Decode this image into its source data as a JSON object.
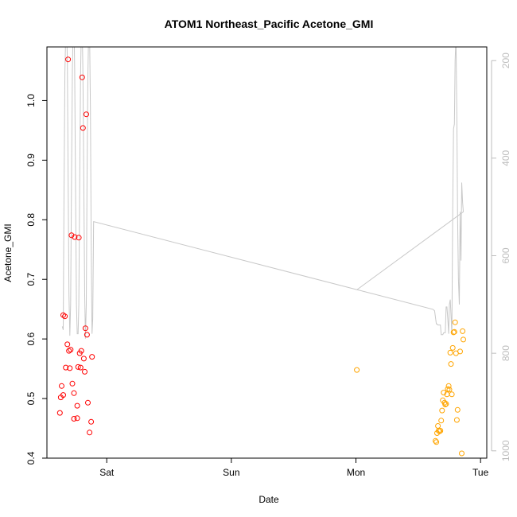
{
  "chart_data": {
    "type": "scatter",
    "title": "ATOM1 Northeast_Pacific Acetone_GMI",
    "xlabel": "Date",
    "ylabel": "Acetone_GMI",
    "xlim": [
      -0.48,
      3.05
    ],
    "ylim": [
      0.4,
      1.09
    ],
    "x_ticks": [
      {
        "value": 0,
        "label": "Sat"
      },
      {
        "value": 1,
        "label": "Sun"
      },
      {
        "value": 2,
        "label": "Mon"
      },
      {
        "value": 3,
        "label": "Tue"
      }
    ],
    "y_ticks": [
      0.4,
      0.5,
      0.6,
      0.7,
      0.8,
      0.9,
      1.0
    ],
    "y2_ticks": [
      200,
      400,
      600,
      800,
      1000
    ],
    "y2_range_reversed": [
      172,
      1015
    ],
    "grid": false,
    "series": [
      {
        "color": "#ff0000",
        "points": [
          {
            "x": -0.376,
            "y": 0.476
          },
          {
            "x": -0.369,
            "y": 0.502
          },
          {
            "x": -0.362,
            "y": 0.521
          },
          {
            "x": -0.349,
            "y": 0.506
          },
          {
            "x": -0.349,
            "y": 0.64
          },
          {
            "x": -0.336,
            "y": 0.638
          },
          {
            "x": -0.329,
            "y": 0.552
          },
          {
            "x": -0.316,
            "y": 0.591
          },
          {
            "x": -0.31,
            "y": 1.069
          },
          {
            "x": -0.303,
            "y": 0.58
          },
          {
            "x": -0.296,
            "y": 0.551
          },
          {
            "x": -0.29,
            "y": 0.582
          },
          {
            "x": -0.283,
            "y": 0.774
          },
          {
            "x": -0.276,
            "y": 0.525
          },
          {
            "x": -0.263,
            "y": 0.466
          },
          {
            "x": -0.263,
            "y": 0.509
          },
          {
            "x": -0.257,
            "y": 0.771
          },
          {
            "x": -0.237,
            "y": 0.467
          },
          {
            "x": -0.237,
            "y": 0.488
          },
          {
            "x": -0.23,
            "y": 0.553
          },
          {
            "x": -0.224,
            "y": 0.77
          },
          {
            "x": -0.217,
            "y": 0.576
          },
          {
            "x": -0.21,
            "y": 0.552
          },
          {
            "x": -0.204,
            "y": 0.58
          },
          {
            "x": -0.197,
            "y": 1.039
          },
          {
            "x": -0.191,
            "y": 0.954
          },
          {
            "x": -0.184,
            "y": 0.567
          },
          {
            "x": -0.177,
            "y": 0.545
          },
          {
            "x": -0.171,
            "y": 0.618
          },
          {
            "x": -0.164,
            "y": 0.977
          },
          {
            "x": -0.158,
            "y": 0.607
          },
          {
            "x": -0.151,
            "y": 0.493
          },
          {
            "x": -0.138,
            "y": 0.443
          },
          {
            "x": -0.125,
            "y": 0.461
          },
          {
            "x": -0.118,
            "y": 0.57
          }
        ]
      },
      {
        "color": "#ffa500",
        "points": [
          {
            "x": 2.007,
            "y": 0.548
          },
          {
            "x": 2.638,
            "y": 0.429
          },
          {
            "x": 2.645,
            "y": 0.427
          },
          {
            "x": 2.651,
            "y": 0.442
          },
          {
            "x": 2.658,
            "y": 0.454
          },
          {
            "x": 2.664,
            "y": 0.446
          },
          {
            "x": 2.671,
            "y": 0.445
          },
          {
            "x": 2.678,
            "y": 0.446
          },
          {
            "x": 2.684,
            "y": 0.463
          },
          {
            "x": 2.691,
            "y": 0.48
          },
          {
            "x": 2.697,
            "y": 0.497
          },
          {
            "x": 2.704,
            "y": 0.51
          },
          {
            "x": 2.711,
            "y": 0.493
          },
          {
            "x": 2.717,
            "y": 0.49
          },
          {
            "x": 2.724,
            "y": 0.491
          },
          {
            "x": 2.73,
            "y": 0.507
          },
          {
            "x": 2.737,
            "y": 0.516
          },
          {
            "x": 2.744,
            "y": 0.521
          },
          {
            "x": 2.75,
            "y": 0.515
          },
          {
            "x": 2.757,
            "y": 0.577
          },
          {
            "x": 2.763,
            "y": 0.558
          },
          {
            "x": 2.77,
            "y": 0.507
          },
          {
            "x": 2.777,
            "y": 0.585
          },
          {
            "x": 2.783,
            "y": 0.611
          },
          {
            "x": 2.79,
            "y": 0.612
          },
          {
            "x": 2.796,
            "y": 0.628
          },
          {
            "x": 2.803,
            "y": 0.576
          },
          {
            "x": 2.81,
            "y": 0.464
          },
          {
            "x": 2.816,
            "y": 0.481
          },
          {
            "x": 2.836,
            "y": 0.579
          },
          {
            "x": 2.849,
            "y": 0.408
          },
          {
            "x": 2.856,
            "y": 0.613
          },
          {
            "x": 2.862,
            "y": 0.599
          }
        ]
      }
    ],
    "pressure_line": {
      "color": "#c8c8c8",
      "axis": "right",
      "points": [
        {
          "x": -0.357,
          "y": 745
        },
        {
          "x": -0.349,
          "y": 752
        },
        {
          "x": -0.343,
          "y": 470
        },
        {
          "x": -0.336,
          "y": 225
        },
        {
          "x": -0.329,
          "y": 140
        },
        {
          "x": -0.323,
          "y": 120
        },
        {
          "x": -0.316,
          "y": 200
        },
        {
          "x": -0.31,
          "y": 430
        },
        {
          "x": -0.303,
          "y": 680
        },
        {
          "x": -0.296,
          "y": 764
        },
        {
          "x": -0.29,
          "y": 700
        },
        {
          "x": -0.283,
          "y": 450
        },
        {
          "x": -0.276,
          "y": 220
        },
        {
          "x": -0.27,
          "y": 140
        },
        {
          "x": -0.263,
          "y": 120
        },
        {
          "x": -0.257,
          "y": 220
        },
        {
          "x": -0.25,
          "y": 470
        },
        {
          "x": -0.243,
          "y": 700
        },
        {
          "x": -0.237,
          "y": 760
        },
        {
          "x": -0.23,
          "y": 760
        },
        {
          "x": -0.224,
          "y": 700
        },
        {
          "x": -0.217,
          "y": 450
        },
        {
          "x": -0.21,
          "y": 230
        },
        {
          "x": -0.204,
          "y": 140
        },
        {
          "x": -0.197,
          "y": 130
        },
        {
          "x": -0.191,
          "y": 230
        },
        {
          "x": -0.184,
          "y": 460
        },
        {
          "x": -0.177,
          "y": 680
        },
        {
          "x": -0.171,
          "y": 770
        },
        {
          "x": -0.164,
          "y": 700
        },
        {
          "x": -0.158,
          "y": 450
        },
        {
          "x": -0.151,
          "y": 230
        },
        {
          "x": -0.144,
          "y": 130
        },
        {
          "x": -0.138,
          "y": 140
        },
        {
          "x": -0.131,
          "y": 300
        },
        {
          "x": -0.125,
          "y": 560
        },
        {
          "x": -0.118,
          "y": 760
        },
        {
          "x": -0.112,
          "y": 730
        },
        {
          "x": -0.105,
          "y": 530
        },
        {
          "x": 2.618,
          "y": 710
        },
        {
          "x": 2.631,
          "y": 713
        },
        {
          "x": 2.645,
          "y": 740
        },
        {
          "x": 2.651,
          "y": 740
        },
        {
          "x": 2.658,
          "y": 742
        },
        {
          "x": 2.678,
          "y": 742
        },
        {
          "x": 2.684,
          "y": 762
        },
        {
          "x": 2.697,
          "y": 762
        },
        {
          "x": 2.704,
          "y": 758
        },
        {
          "x": 2.717,
          "y": 758
        },
        {
          "x": 2.724,
          "y": 705
        },
        {
          "x": 2.73,
          "y": 705
        },
        {
          "x": 2.737,
          "y": 730
        },
        {
          "x": 2.744,
          "y": 760
        },
        {
          "x": 2.75,
          "y": 700
        },
        {
          "x": 2.757,
          "y": 690
        },
        {
          "x": 2.763,
          "y": 720
        },
        {
          "x": 2.77,
          "y": 760
        },
        {
          "x": 2.777,
          "y": 500
        },
        {
          "x": 2.783,
          "y": 340
        },
        {
          "x": 2.79,
          "y": 330
        },
        {
          "x": 2.796,
          "y": 200
        },
        {
          "x": 2.803,
          "y": 150
        },
        {
          "x": 2.81,
          "y": 320
        },
        {
          "x": 2.816,
          "y": 520
        },
        {
          "x": 2.823,
          "y": 650
        },
        {
          "x": 2.83,
          "y": 700
        },
        {
          "x": 2.836,
          "y": 510
        },
        {
          "x": 2.843,
          "y": 610
        },
        {
          "x": 2.849,
          "y": 450
        },
        {
          "x": 2.856,
          "y": 490
        },
        {
          "x": 2.862,
          "y": 510
        },
        {
          "x": 2.007,
          "y": 670
        },
        {
          "x": 2.862,
          "y": 510
        }
      ]
    }
  }
}
